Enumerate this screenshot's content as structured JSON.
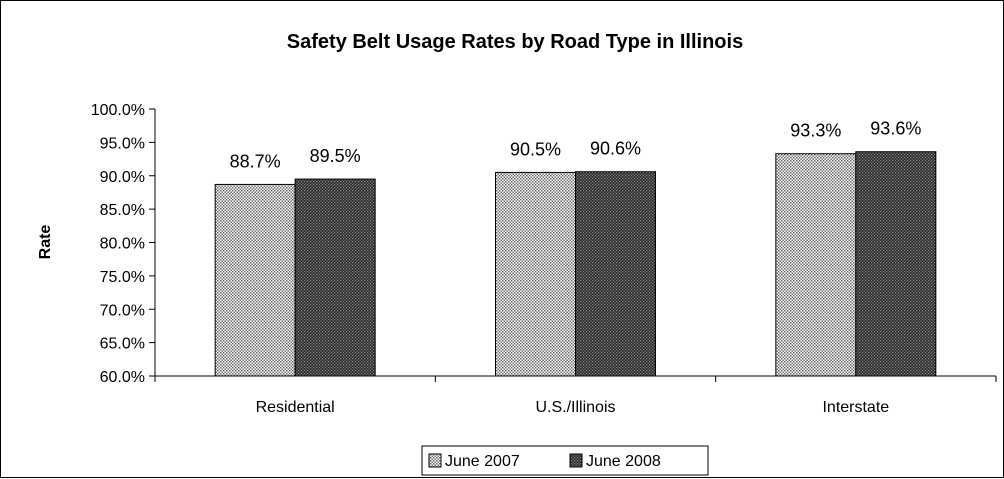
{
  "chart_data": {
    "type": "bar",
    "title": "Safety Belt Usage Rates by Road Type in Illinois",
    "xlabel": "",
    "ylabel": "Rate",
    "ylim": [
      60,
      100
    ],
    "ytick_step": 5,
    "ytick_labels": [
      "60.0%",
      "65.0%",
      "70.0%",
      "75.0%",
      "80.0%",
      "85.0%",
      "90.0%",
      "95.0%",
      "100.0%"
    ],
    "categories": [
      "Residential",
      "U.S./Illinois",
      "Interstate"
    ],
    "series": [
      {
        "name": "June 2007",
        "values": [
          88.7,
          90.5,
          93.3
        ],
        "labels": [
          "88.7%",
          "90.5%",
          "93.3%"
        ],
        "pattern": "light-dots",
        "color": "#b8b8b8"
      },
      {
        "name": "June 2008",
        "values": [
          89.5,
          90.6,
          93.6
        ],
        "labels": [
          "89.5%",
          "90.6%",
          "93.6%"
        ],
        "pattern": "dark-dots",
        "color": "#4a4a4a"
      }
    ],
    "grid": false,
    "legend": "bottom"
  }
}
